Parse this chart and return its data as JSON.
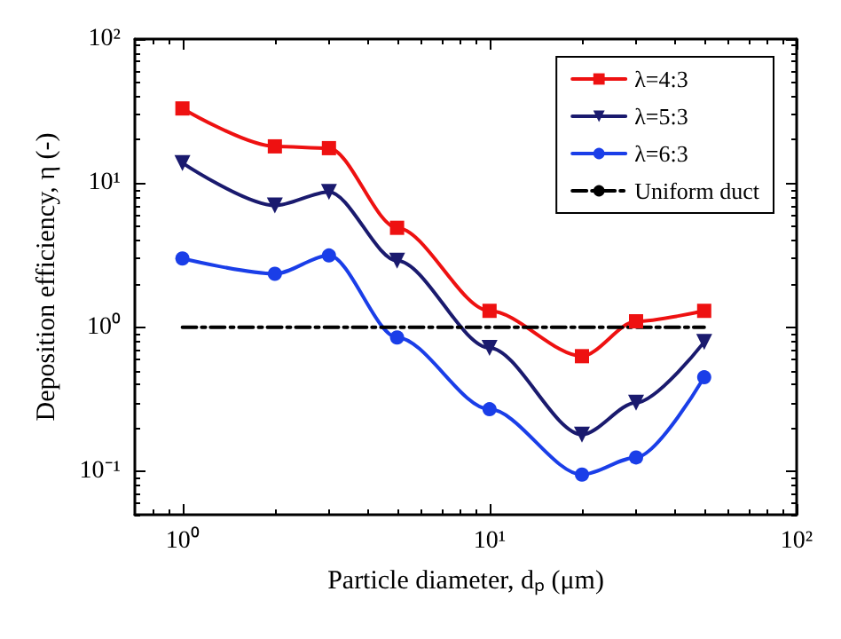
{
  "chart_data": {
    "type": "line",
    "xlabel": "Particle diameter, dₚ (μm)",
    "ylabel": "Deposition efficiency, η (-)",
    "log": "xy",
    "xlim": [
      0.7,
      100
    ],
    "ylim": [
      0.05,
      100
    ],
    "xticks": [
      {
        "value": 1,
        "label": "10⁰"
      },
      {
        "value": 10,
        "label": "10¹"
      },
      {
        "value": 100,
        "label": "10²"
      }
    ],
    "yticks": [
      {
        "value": 0.1,
        "label": "10⁻¹"
      },
      {
        "value": 1,
        "label": "10⁰"
      },
      {
        "value": 10,
        "label": "10¹"
      },
      {
        "value": 100,
        "label": "10²"
      }
    ],
    "x": [
      1,
      2,
      3,
      5,
      10,
      20,
      30,
      50
    ],
    "grid": false,
    "legend": "top right",
    "series": [
      {
        "name": "λ=4:3",
        "color": "#ee1111",
        "marker": "square",
        "line_style": "solid",
        "values": [
          33,
          18,
          17.5,
          4.9,
          1.3,
          0.63,
          1.1,
          1.3
        ]
      },
      {
        "name": "λ=5:3",
        "color": "#1a1a6e",
        "marker": "triangle",
        "line_style": "solid",
        "values": [
          13.8,
          7,
          8.7,
          2.9,
          0.72,
          0.18,
          0.3,
          0.79
        ]
      },
      {
        "name": "λ=6:3",
        "color": "#1a3ee8",
        "marker": "circle",
        "line_style": "solid",
        "values": [
          3,
          2.35,
          3.15,
          0.85,
          0.27,
          0.095,
          0.125,
          0.45
        ]
      },
      {
        "name": "Uniform duct",
        "color": "#000000",
        "marker": "none",
        "line_style": "dashed",
        "x": [
          1,
          50
        ],
        "values": [
          1,
          1
        ]
      }
    ]
  }
}
